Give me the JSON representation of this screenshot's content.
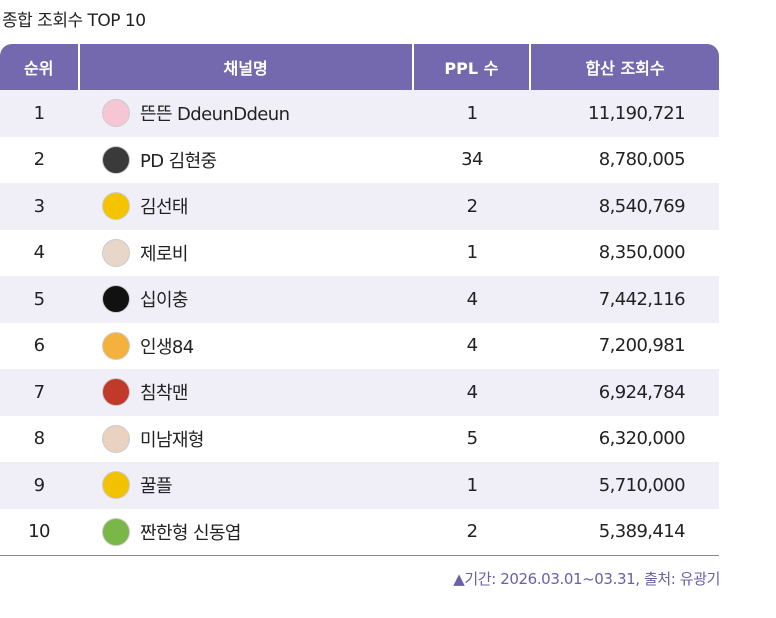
{
  "header": {
    "title": "종합 조회수 TOP 10"
  },
  "table": {
    "columns": [
      "순위",
      "채널명",
      "PPL 수",
      "합산 조회수"
    ],
    "rows": [
      [
        "1",
        "뜬뜬 DdeunDdeun",
        "1",
        "11,190,721"
      ],
      [
        "2",
        "PD 김현중",
        "34",
        "8,780,005"
      ],
      [
        "3",
        "김선태",
        "2",
        "8,540,769"
      ],
      [
        "4",
        "제로비",
        "1",
        "8,350,000"
      ],
      [
        "5",
        "십이충",
        "4",
        "7,442,116"
      ],
      [
        "6",
        "인생84",
        "4",
        "7,200,981"
      ],
      [
        "7",
        "침착맨",
        "4",
        "6,924,784"
      ],
      [
        "8",
        "미남재형",
        "5",
        "6,320,000"
      ],
      [
        "9",
        "꿀플",
        "1",
        "5,710,000"
      ],
      [
        "10",
        "짠한형 신동엽",
        "2",
        "5,389,414"
      ]
    ]
  },
  "footnote": "▲기간: 2026.03.01~03.31, 출처: 유광기"
}
